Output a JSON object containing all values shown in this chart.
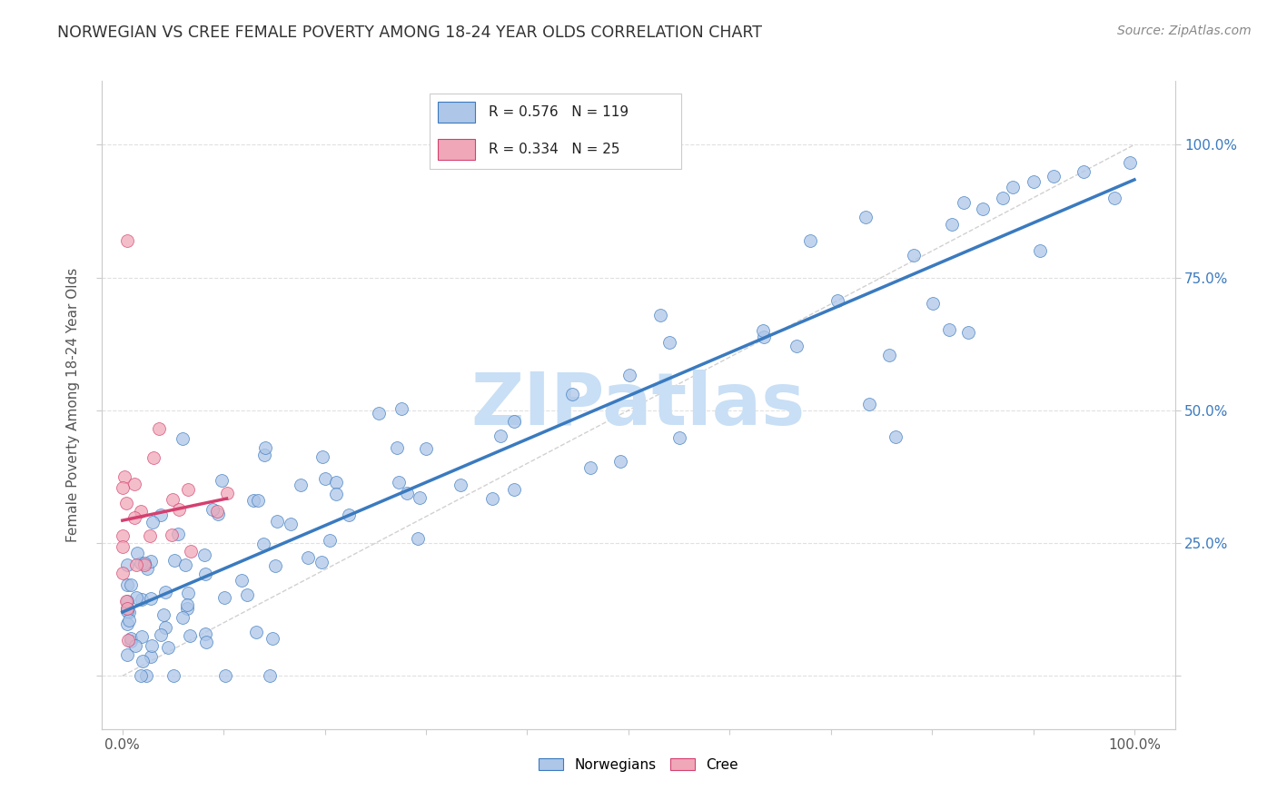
{
  "title": "NORWEGIAN VS CREE FEMALE POVERTY AMONG 18-24 YEAR OLDS CORRELATION CHART",
  "source": "Source: ZipAtlas.com",
  "ylabel": "Female Poverty Among 18-24 Year Olds",
  "norwegian_R": 0.576,
  "norwegian_N": 119,
  "cree_R": 0.334,
  "cree_N": 25,
  "norwegian_color": "#aec6e8",
  "cree_color": "#f0a8b8",
  "norwegian_line_color": "#3a7abf",
  "cree_line_color": "#d44070",
  "ref_line_color": "#cccccc",
  "tick_color": "#3a7abf",
  "watermark": "ZIPatlas",
  "watermark_color": "#c8dff5",
  "nor_seed": 99,
  "cree_seed": 77
}
